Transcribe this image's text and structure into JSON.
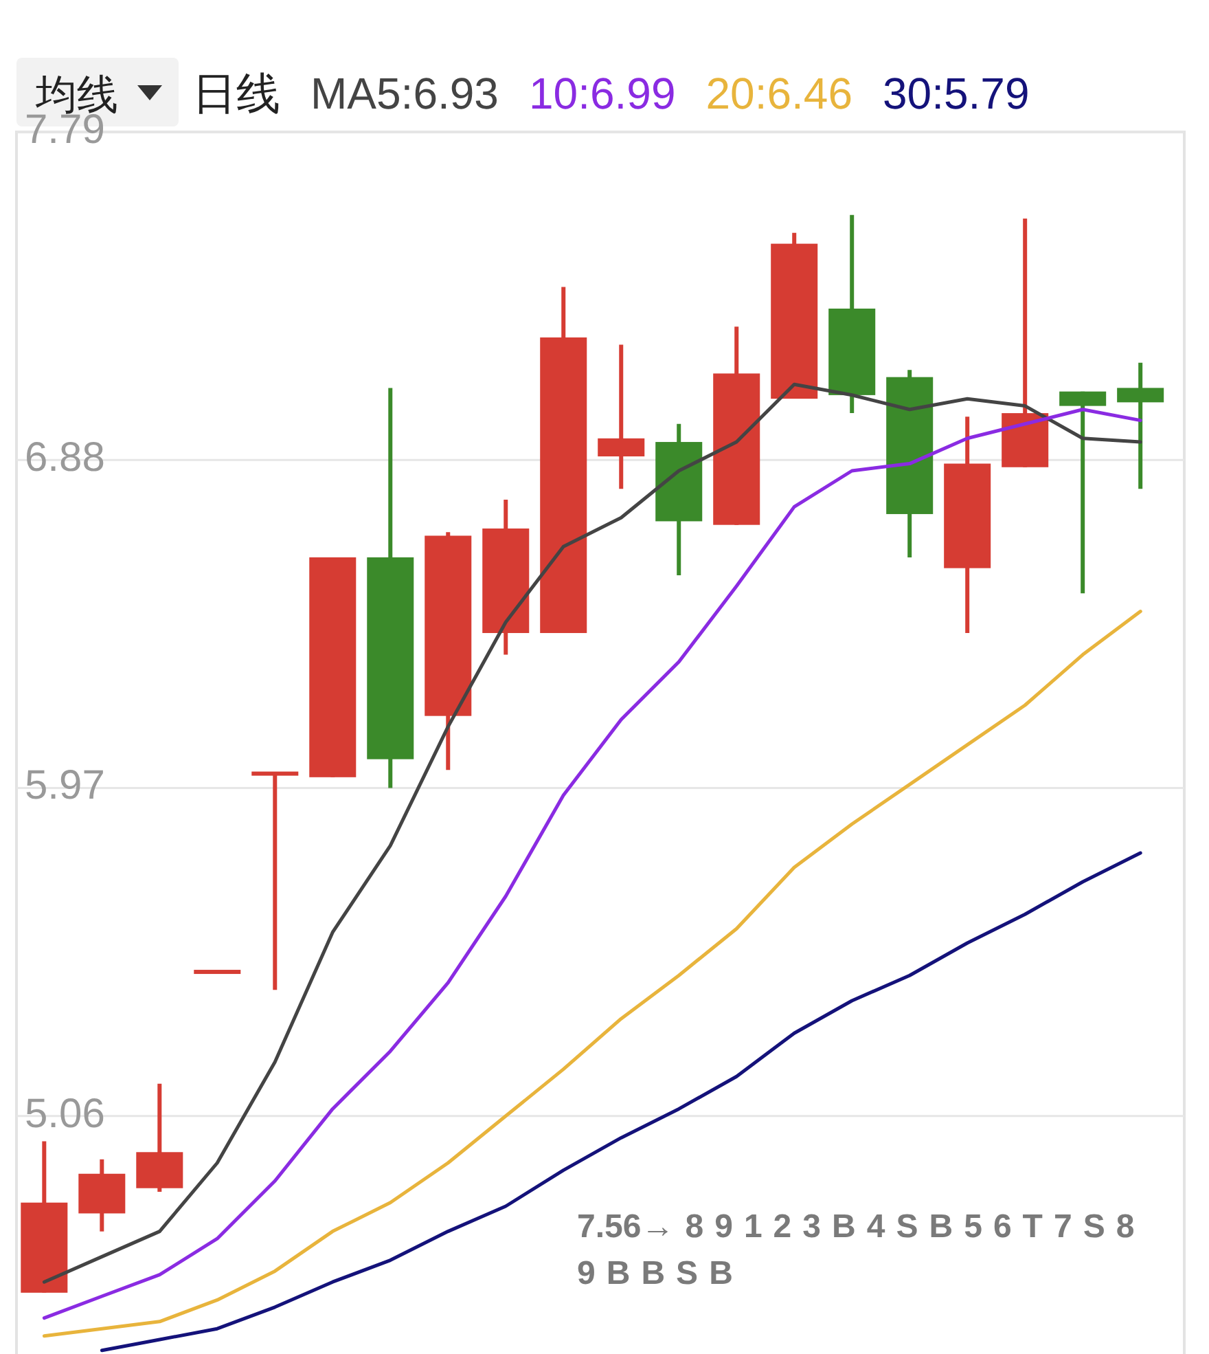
{
  "chart_data": {
    "type": "candlestick",
    "title": "均线",
    "subtitle": "日线",
    "categories": [
      null,
      null,
      null,
      null,
      null,
      null,
      null,
      null,
      null,
      null,
      null,
      null,
      null,
      null,
      null,
      null,
      null,
      null,
      null,
      null
    ],
    "ylim": [
      4.4,
      7.79
    ],
    "yticks": [
      7.79,
      6.88,
      5.97,
      5.06
    ],
    "tick_labels": "y",
    "grid": "y",
    "ohlc": [
      [
        4.57,
        4.99,
        4.57,
        4.82
      ],
      [
        4.79,
        4.94,
        4.74,
        4.9
      ],
      [
        4.86,
        5.15,
        4.85,
        4.96
      ],
      [
        5.46,
        5.46,
        5.46,
        5.46
      ],
      [
        6.01,
        6.01,
        5.41,
        6.01
      ],
      [
        6.0,
        6.61,
        6.0,
        6.61
      ],
      [
        6.61,
        7.08,
        5.97,
        6.05
      ],
      [
        6.17,
        6.68,
        6.02,
        6.67
      ],
      [
        6.4,
        6.77,
        6.34,
        6.69
      ],
      [
        6.4,
        7.36,
        6.4,
        7.22
      ],
      [
        6.89,
        7.2,
        6.8,
        6.94
      ],
      [
        6.93,
        6.98,
        6.56,
        6.71
      ],
      [
        6.7,
        7.25,
        6.7,
        7.12
      ],
      [
        7.05,
        7.51,
        7.05,
        7.48
      ],
      [
        7.3,
        7.56,
        7.01,
        7.06
      ],
      [
        7.11,
        7.13,
        6.61,
        6.73
      ],
      [
        6.58,
        7.0,
        6.4,
        6.87
      ],
      [
        6.86,
        7.55,
        6.86,
        7.01
      ],
      [
        7.07,
        7.07,
        6.51,
        7.03
      ],
      [
        7.08,
        7.15,
        6.8,
        7.04
      ]
    ],
    "colors": [
      "#d63c33",
      "#d63c33",
      "#d63c33",
      "#d63c33",
      "#d63c33",
      "#d63c33",
      "#3b8a2a",
      "#d63c33",
      "#d63c33",
      "#d63c33",
      "#d63c33",
      "#3b8a2a",
      "#d63c33",
      "#d63c33",
      "#3b8a2a",
      "#3b8a2a",
      "#d63c33",
      "#d63c33",
      "#3b8a2a",
      "#3b8a2a"
    ],
    "series": [
      {
        "name": "MA5:6.93",
        "type": "line",
        "color": "#444444",
        "values": [
          4.6,
          4.67,
          4.74,
          4.93,
          5.21,
          5.57,
          5.81,
          6.14,
          6.43,
          6.64,
          6.72,
          6.85,
          6.93,
          7.09,
          7.06,
          7.02,
          7.05,
          7.03,
          6.94,
          6.93
        ]
      },
      {
        "name": "10:6.99",
        "type": "line",
        "color": "#8a2be2",
        "values": [
          4.5,
          4.56,
          4.62,
          4.72,
          4.88,
          5.08,
          5.24,
          5.43,
          5.67,
          5.95,
          6.16,
          6.32,
          6.53,
          6.75,
          6.85,
          6.87,
          6.94,
          6.98,
          7.02,
          6.99
        ]
      },
      {
        "name": "20:6.46",
        "type": "line",
        "color": "#e8b43c",
        "values": [
          4.45,
          4.47,
          4.49,
          4.55,
          4.63,
          4.74,
          4.82,
          4.93,
          5.06,
          5.19,
          5.33,
          5.45,
          5.58,
          5.75,
          5.87,
          5.98,
          6.09,
          6.2,
          6.34,
          6.46
        ]
      },
      {
        "name": "30:5.79",
        "type": "line",
        "color": "#14127a",
        "values": [
          null,
          4.41,
          4.44,
          4.47,
          4.53,
          4.6,
          4.66,
          4.74,
          4.81,
          4.91,
          5.0,
          5.08,
          5.17,
          5.29,
          5.38,
          5.45,
          5.54,
          5.62,
          5.71,
          5.79
        ]
      }
    ],
    "annotations": [
      "7.56→",
      "8",
      "9",
      "1",
      "2",
      "3",
      "B",
      "4",
      "S",
      "B",
      "5",
      "6",
      "T",
      "7",
      "S",
      "8",
      "9",
      "B",
      "B",
      "S",
      "B"
    ]
  }
}
